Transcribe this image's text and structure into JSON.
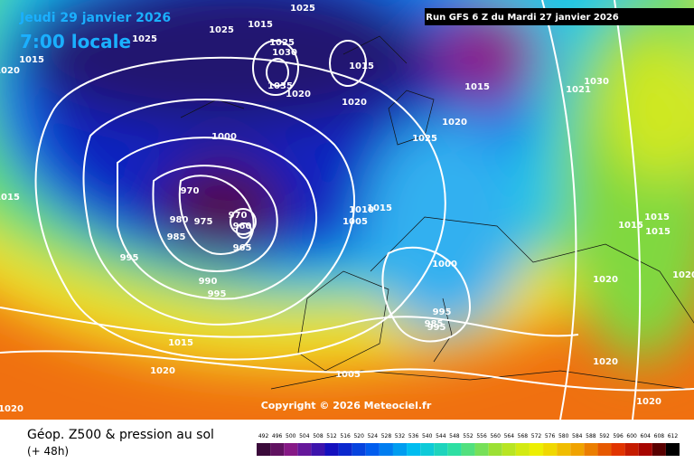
{
  "header": {
    "date": "Jeudi 29 janvier 2026",
    "time": "7:00 locale",
    "run": "Run GFS 6 Z du Mardi 27 janvier 2026"
  },
  "copyright": "Copyright © 2026 Meteociel.fr",
  "footer": {
    "title": "Géop. Z500 & pression au sol",
    "lead": "(+ 48h)"
  },
  "isobar_labels": [
    1025,
    1025,
    1015,
    1025,
    1015,
    1020,
    1025,
    1030,
    1035,
    1020,
    1015,
    1020,
    1015,
    1020,
    1025,
    1021,
    1030,
    1000,
    970,
    980,
    975,
    985,
    970,
    960,
    965,
    995,
    990,
    995,
    1015,
    1010,
    1015,
    1005,
    1000,
    995,
    985,
    995,
    1015,
    1020,
    1005,
    1020,
    1015,
    1015,
    1015,
    1020,
    1020,
    1020,
    1020
  ],
  "scale_ticks": [
    492,
    496,
    500,
    504,
    508,
    512,
    516,
    520,
    524,
    528,
    532,
    536,
    540,
    544,
    548,
    552,
    556,
    560,
    564,
    568,
    572,
    576,
    580,
    584,
    588,
    592,
    596,
    600,
    604,
    608,
    612
  ]
}
